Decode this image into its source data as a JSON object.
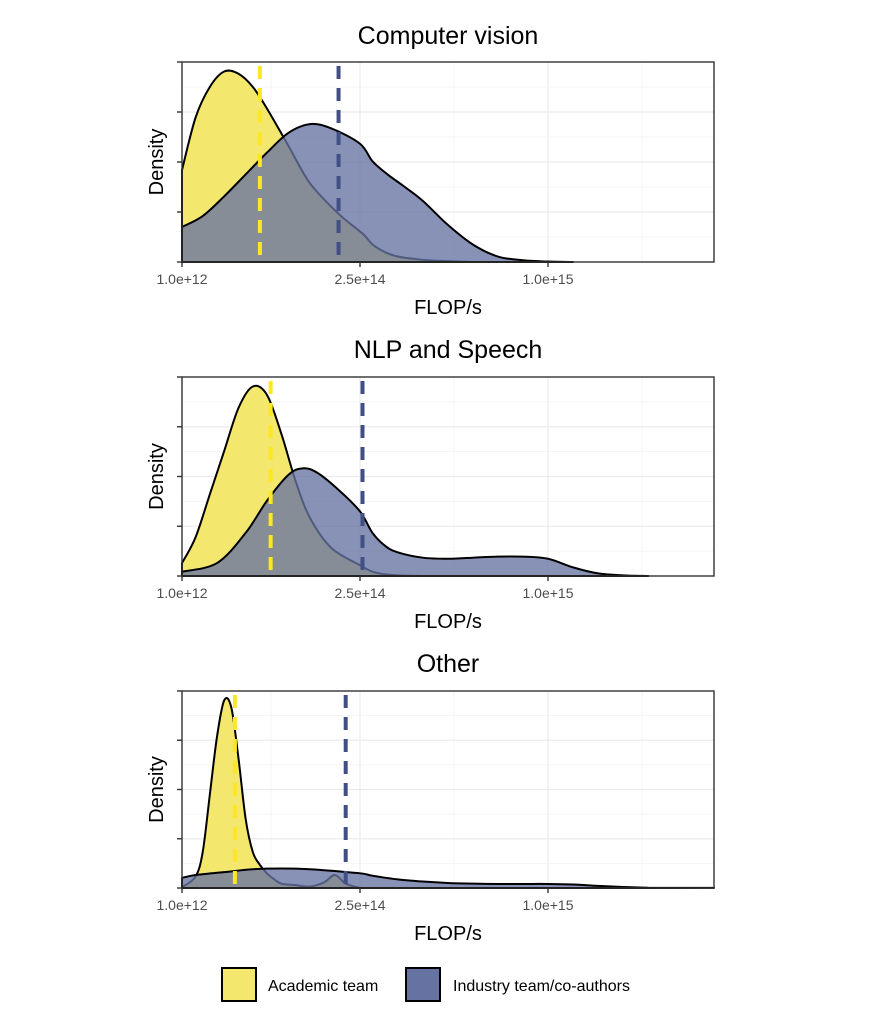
{
  "chart_data": [
    {
      "type": "area",
      "title": "Computer vision",
      "xlabel": "FLOP/s",
      "ylabel": "Density",
      "x_ticks": [
        "1.0e+12",
        "2.5e+14",
        "1.0e+15"
      ],
      "grid": true,
      "series": [
        {
          "name": "Academic team",
          "x": [
            1000000000000.0,
            20000000000000.0,
            40000000000000.0,
            60000000000000.0,
            80000000000000.0,
            100000000000000.0,
            120000000000000.0,
            150000000000000.0,
            180000000000000.0,
            220000000000000.0,
            260000000000000.0,
            300000000000000.0,
            350000000000000.0,
            400000000000000.0,
            500000000000000.0,
            600000000000000.0,
            700000000000000.0
          ],
          "values": [
            0.42,
            0.66,
            0.8,
            0.87,
            0.86,
            0.8,
            0.7,
            0.53,
            0.36,
            0.22,
            0.13,
            0.08,
            0.045,
            0.025,
            0.01,
            0.004,
            0.0
          ],
          "mean": 110000000000000.0
        },
        {
          "name": "Industry team/co-authors",
          "x": [
            1000000000000.0,
            30000000000000.0,
            60000000000000.0,
            90000000000000.0,
            120000000000000.0,
            150000000000000.0,
            180000000000000.0,
            210000000000000.0,
            250000000000000.0,
            300000000000000.0,
            360000000000000.0,
            420000000000000.0,
            500000000000000.0,
            600000000000000.0,
            700000000000000.0,
            800000000000000.0,
            900000000000000.0,
            1000000000000000.0,
            1100000000000000.0
          ],
          "values": [
            0.16,
            0.21,
            0.3,
            0.4,
            0.5,
            0.59,
            0.63,
            0.61,
            0.54,
            0.46,
            0.4,
            0.35,
            0.28,
            0.17,
            0.08,
            0.025,
            0.008,
            0.002,
            0.0
          ],
          "mean": 220000000000000.0
        }
      ]
    },
    {
      "type": "area",
      "title": "NLP and Speech",
      "xlabel": "FLOP/s",
      "ylabel": "Density",
      "x_ticks": [
        "1.0e+12",
        "2.5e+14",
        "1.0e+15"
      ],
      "grid": true,
      "series": [
        {
          "name": "Academic team",
          "x": [
            1000000000000.0,
            20000000000000.0,
            40000000000000.0,
            60000000000000.0,
            80000000000000.0,
            100000000000000.0,
            120000000000000.0,
            140000000000000.0,
            160000000000000.0,
            180000000000000.0,
            210000000000000.0,
            250000000000000.0,
            300000000000000.0,
            350000000000000.0,
            400000000000000.0,
            500000000000000.0
          ],
          "values": [
            0.06,
            0.18,
            0.38,
            0.58,
            0.78,
            0.88,
            0.84,
            0.66,
            0.44,
            0.27,
            0.13,
            0.05,
            0.02,
            0.008,
            0.003,
            0.0
          ],
          "mean": 125000000000000.0
        },
        {
          "name": "Industry team/co-authors",
          "x": [
            1000000000000.0,
            50000000000000.0,
            90000000000000.0,
            120000000000000.0,
            150000000000000.0,
            170000000000000.0,
            190000000000000.0,
            220000000000000.0,
            250000000000000.0,
            300000000000000.0,
            350000000000000.0,
            400000000000000.0,
            500000000000000.0,
            600000000000000.0,
            700000000000000.0,
            800000000000000.0,
            900000000000000.0,
            1000000000000000.0,
            1100000000000000.0,
            1200000000000000.0,
            1300000000000000.0,
            1400000000000000.0
          ],
          "values": [
            0.02,
            0.06,
            0.2,
            0.35,
            0.47,
            0.5,
            0.48,
            0.4,
            0.3,
            0.2,
            0.14,
            0.11,
            0.085,
            0.08,
            0.085,
            0.09,
            0.09,
            0.08,
            0.04,
            0.012,
            0.003,
            0.0
          ],
          "mean": 260000000000000.0
        }
      ]
    },
    {
      "type": "area",
      "title": "Other",
      "xlabel": "FLOP/s",
      "ylabel": "Density",
      "x_ticks": [
        "1.0e+12",
        "2.5e+14",
        "1.0e+15"
      ],
      "grid": true,
      "series": [
        {
          "name": "Academic team",
          "x": [
            1000000000000.0,
            20000000000000.0,
            30000000000000.0,
            40000000000000.0,
            50000000000000.0,
            60000000000000.0,
            70000000000000.0,
            80000000000000.0,
            90000000000000.0,
            100000000000000.0,
            110000000000000.0,
            120000000000000.0,
            130000000000000.0,
            140000000000000.0,
            160000000000000.0,
            180000000000000.0,
            200000000000000.0,
            215000000000000.0,
            230000000000000.0,
            250000000000000.0
          ],
          "values": [
            0.005,
            0.08,
            0.25,
            0.65,
            1.05,
            1.3,
            1.25,
            0.9,
            0.48,
            0.25,
            0.16,
            0.1,
            0.06,
            0.03,
            0.02,
            0.01,
            0.04,
            0.09,
            0.03,
            0.0
          ],
          "mean": 75000000000000.0
        },
        {
          "name": "Industry team/co-authors",
          "x": [
            1000000000000.0,
            20000000000000.0,
            60000000000000.0,
            100000000000000.0,
            140000000000000.0,
            180000000000000.0,
            220000000000000.0,
            260000000000000.0,
            300000000000000.0,
            400000000000000.0,
            500000000000000.0,
            600000000000000.0,
            700000000000000.0,
            800000000000000.0,
            900000000000000.0,
            1000000000000000.0,
            1100000000000000.0,
            1200000000000000.0,
            1300000000000000.0,
            1400000000000000.0
          ],
          "values": [
            0.07,
            0.09,
            0.11,
            0.13,
            0.135,
            0.13,
            0.115,
            0.1,
            0.085,
            0.06,
            0.045,
            0.035,
            0.03,
            0.028,
            0.028,
            0.028,
            0.024,
            0.015,
            0.007,
            0.002
          ],
          "mean": 230000000000000.0
        }
      ]
    }
  ],
  "legend": {
    "position": "bottom",
    "items": [
      {
        "label": "Academic team",
        "color": "#f3e76d"
      },
      {
        "label": "Industry team/co-authors",
        "color": "#6673a2"
      }
    ]
  },
  "colors": {
    "academic_fill": "#f3e76d",
    "industry_fill": "#6673a2",
    "academic_mean_line": "#fde725",
    "industry_mean_line": "#414f85"
  }
}
